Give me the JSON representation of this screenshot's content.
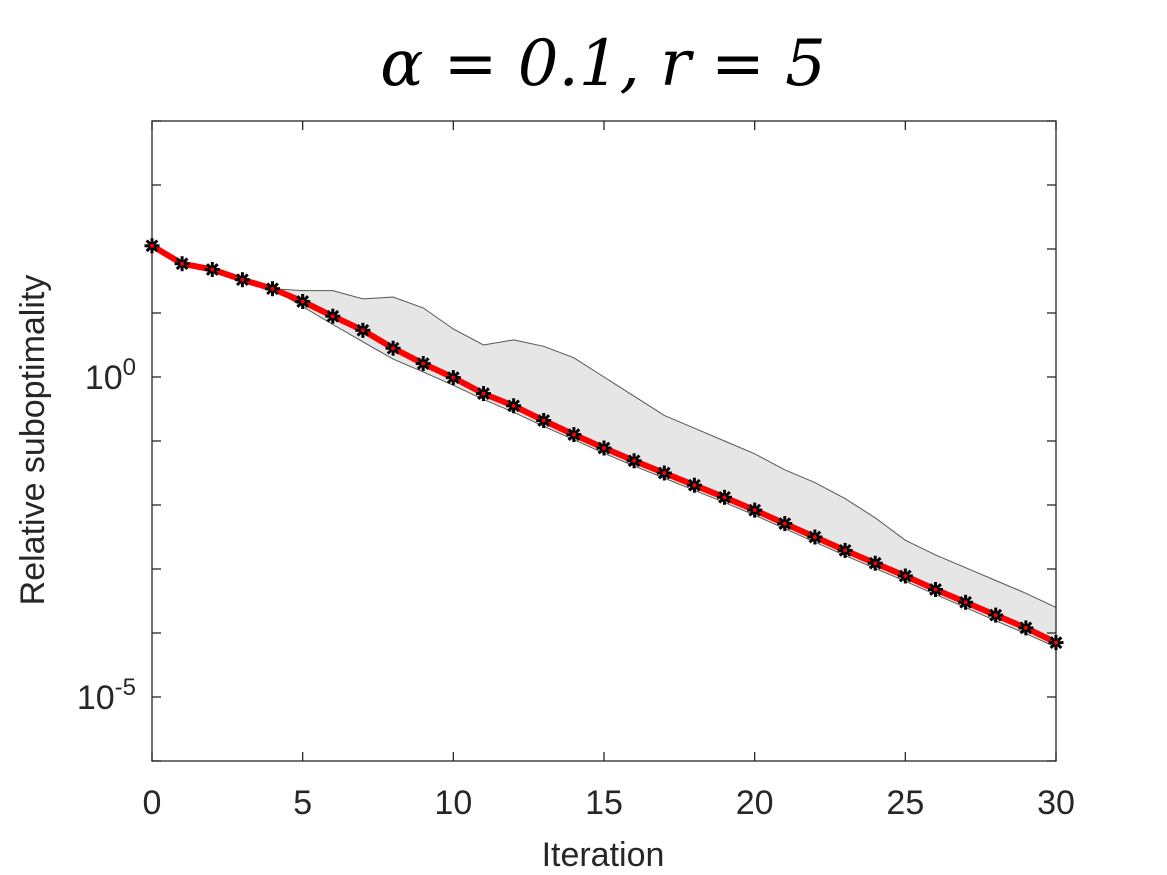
{
  "chart_data": {
    "type": "line",
    "title": "α = 0.1, r = 5",
    "xlabel": "Iteration",
    "ylabel": "Relative suboptimality",
    "x_scale": "linear",
    "y_scale": "log",
    "xlim": [
      0,
      30
    ],
    "ylim_log10": [
      -6,
      4
    ],
    "x_ticks": [
      0,
      5,
      10,
      15,
      20,
      25,
      30
    ],
    "x_tick_labels": [
      "0",
      "5",
      "10",
      "15",
      "20",
      "25",
      "30"
    ],
    "y_ticks_log10": [
      0,
      -5
    ],
    "y_tick_labels": [
      {
        "base": "10",
        "exp": "0"
      },
      {
        "base": "10",
        "exp": "-5"
      }
    ],
    "grid": false,
    "x": [
      0,
      1,
      2,
      3,
      4,
      5,
      6,
      7,
      8,
      9,
      10,
      11,
      12,
      13,
      14,
      15,
      16,
      17,
      18,
      19,
      20,
      21,
      22,
      23,
      24,
      25,
      26,
      27,
      28,
      29,
      30
    ],
    "series": [
      {
        "role": "median",
        "color": "#ff0000",
        "marker_color": "#000000",
        "log10_values": [
          2.05,
          1.77,
          1.68,
          1.52,
          1.38,
          1.18,
          0.95,
          0.73,
          0.45,
          0.21,
          -0.01,
          -0.26,
          -0.45,
          -0.68,
          -0.9,
          -1.11,
          -1.31,
          -1.5,
          -1.69,
          -1.88,
          -2.08,
          -2.29,
          -2.5,
          -2.71,
          -2.91,
          -3.11,
          -3.32,
          -3.52,
          -3.72,
          -3.92,
          -4.15
        ]
      }
    ],
    "band": {
      "fill": "#e6e6e6",
      "stroke": "#555555",
      "upper_log10": [
        2.05,
        1.77,
        1.68,
        1.52,
        1.38,
        1.35,
        1.35,
        1.22,
        1.25,
        1.08,
        0.75,
        0.5,
        0.58,
        0.48,
        0.3,
        0.0,
        -0.3,
        -0.6,
        -0.8,
        -1.0,
        -1.2,
        -1.45,
        -1.65,
        -1.9,
        -2.2,
        -2.55,
        -2.78,
        -2.98,
        -3.18,
        -3.38,
        -3.6
      ],
      "lower_log10": [
        2.05,
        1.77,
        1.68,
        1.52,
        1.38,
        1.1,
        0.82,
        0.55,
        0.28,
        0.08,
        -0.13,
        -0.35,
        -0.55,
        -0.77,
        -0.98,
        -1.19,
        -1.39,
        -1.58,
        -1.77,
        -1.96,
        -2.16,
        -2.37,
        -2.58,
        -2.79,
        -2.99,
        -3.19,
        -3.4,
        -3.6,
        -3.81,
        -4.01,
        -4.22
      ]
    }
  }
}
